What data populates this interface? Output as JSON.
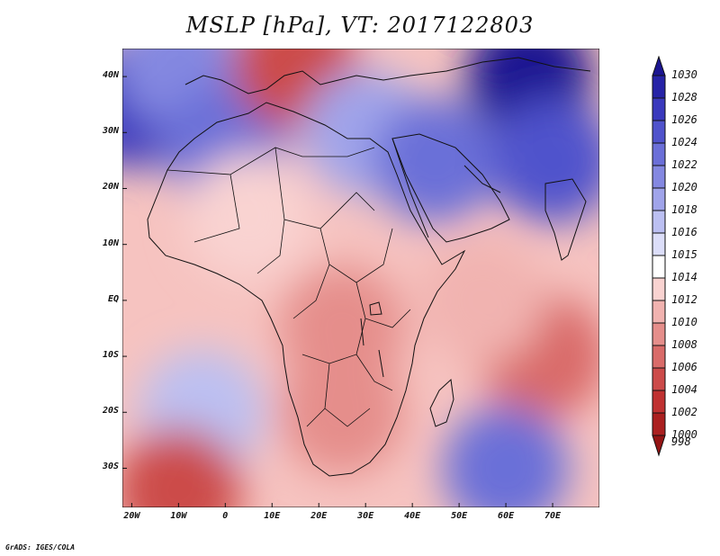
{
  "title": "MSLP [hPa], VT: 2017122803",
  "footer": "GrADS: IGES/COLA",
  "lat_labels": [
    "40N",
    "30N",
    "20N",
    "10N",
    "EQ",
    "10S",
    "20S",
    "30S"
  ],
  "lon_labels": [
    "20W",
    "10W",
    "0",
    "10E",
    "20E",
    "30E",
    "40E",
    "50E",
    "60E",
    "70E"
  ],
  "colorbar": {
    "levels": [
      "1030",
      "1028",
      "1026",
      "1024",
      "1022",
      "1020",
      "1018",
      "1016",
      "1015",
      "1014",
      "1012",
      "1010",
      "1008",
      "1006",
      "1004",
      "1002",
      "1000",
      "998"
    ],
    "colors": [
      "#1b1591",
      "#2623a7",
      "#3a39bd",
      "#5053cc",
      "#6b6fd8",
      "#8488e1",
      "#a0a4ea",
      "#bcc0f2",
      "#dcdef9",
      "#ffffff",
      "#f9d3d1",
      "#f1b3b0",
      "#e58e8b",
      "#d96b69",
      "#cc4b4a",
      "#c03232",
      "#ab2020",
      "#941414"
    ]
  },
  "map": {
    "lon_range": [
      -22,
      80
    ],
    "lat_range": [
      -37,
      45
    ],
    "field": [
      {
        "lon": -20,
        "lat": 35,
        "value": 1026
      },
      {
        "lon": -10,
        "lat": 42,
        "value": 1020
      },
      {
        "lon": 0,
        "lat": 28,
        "value": 1022
      },
      {
        "lon": 15,
        "lat": 42,
        "value": 1004
      },
      {
        "lon": 30,
        "lat": 30,
        "value": 1018
      },
      {
        "lon": 45,
        "lat": 25,
        "value": 1022
      },
      {
        "lon": 65,
        "lat": 40,
        "value": 1030
      },
      {
        "lon": 70,
        "lat": 25,
        "value": 1024
      },
      {
        "lon": 5,
        "lat": 15,
        "value": 1012
      },
      {
        "lon": 25,
        "lat": -5,
        "value": 1008
      },
      {
        "lon": 25,
        "lat": -20,
        "value": 1008
      },
      {
        "lon": 68,
        "lat": -10,
        "value": 1006
      },
      {
        "lon": 55,
        "lat": 0,
        "value": 1010
      },
      {
        "lon": -5,
        "lat": -20,
        "value": 1016
      },
      {
        "lon": -10,
        "lat": -34,
        "value": 1004
      },
      {
        "lon": 60,
        "lat": -30,
        "value": 1022
      }
    ]
  }
}
